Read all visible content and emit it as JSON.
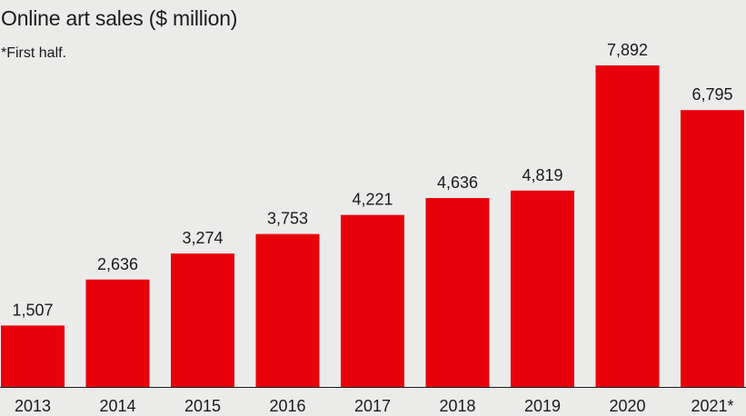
{
  "chart_data": {
    "type": "bar",
    "title": "Online art sales ($ million)",
    "note": "*First half.",
    "categories": [
      "2013",
      "2014",
      "2015",
      "2016",
      "2017",
      "2018",
      "2019",
      "2020",
      "2021*"
    ],
    "values": [
      1507,
      2636,
      3274,
      3753,
      4221,
      4636,
      4819,
      7892,
      6795
    ],
    "value_labels": [
      "1,507",
      "2,636",
      "3,274",
      "3,753",
      "4,221",
      "4,636",
      "4,819",
      "7,892",
      "6,795"
    ],
    "ylim": [
      0,
      8500
    ],
    "bar_color": "#e8000b",
    "grid": false
  }
}
